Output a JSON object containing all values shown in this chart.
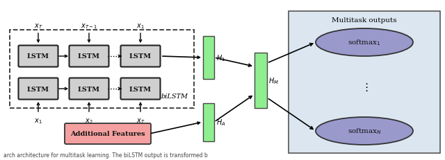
{
  "fig_width": 6.4,
  "fig_height": 2.32,
  "dpi": 100,
  "background_color": "#ffffff",
  "lstm_box_color": "#d0d0d0",
  "lstm_box_edge": "#222222",
  "bilstm_dashed_color": "#333333",
  "additional_features_color": "#f4a0a0",
  "additional_features_edge": "#333333",
  "h_bar_color": "#90ee90",
  "hm_bar_color": "#90ee90",
  "multitask_box_color": "#dce6f1",
  "multitask_box_edge": "#555555",
  "softmax_ellipse_color": "#9999cc",
  "softmax_ellipse_edge": "#333333",
  "arrow_color": "#000000",
  "text_color": "#000000",
  "caption_text": "arch architecture for multitask learning. The biLSTM output is transformed b"
}
